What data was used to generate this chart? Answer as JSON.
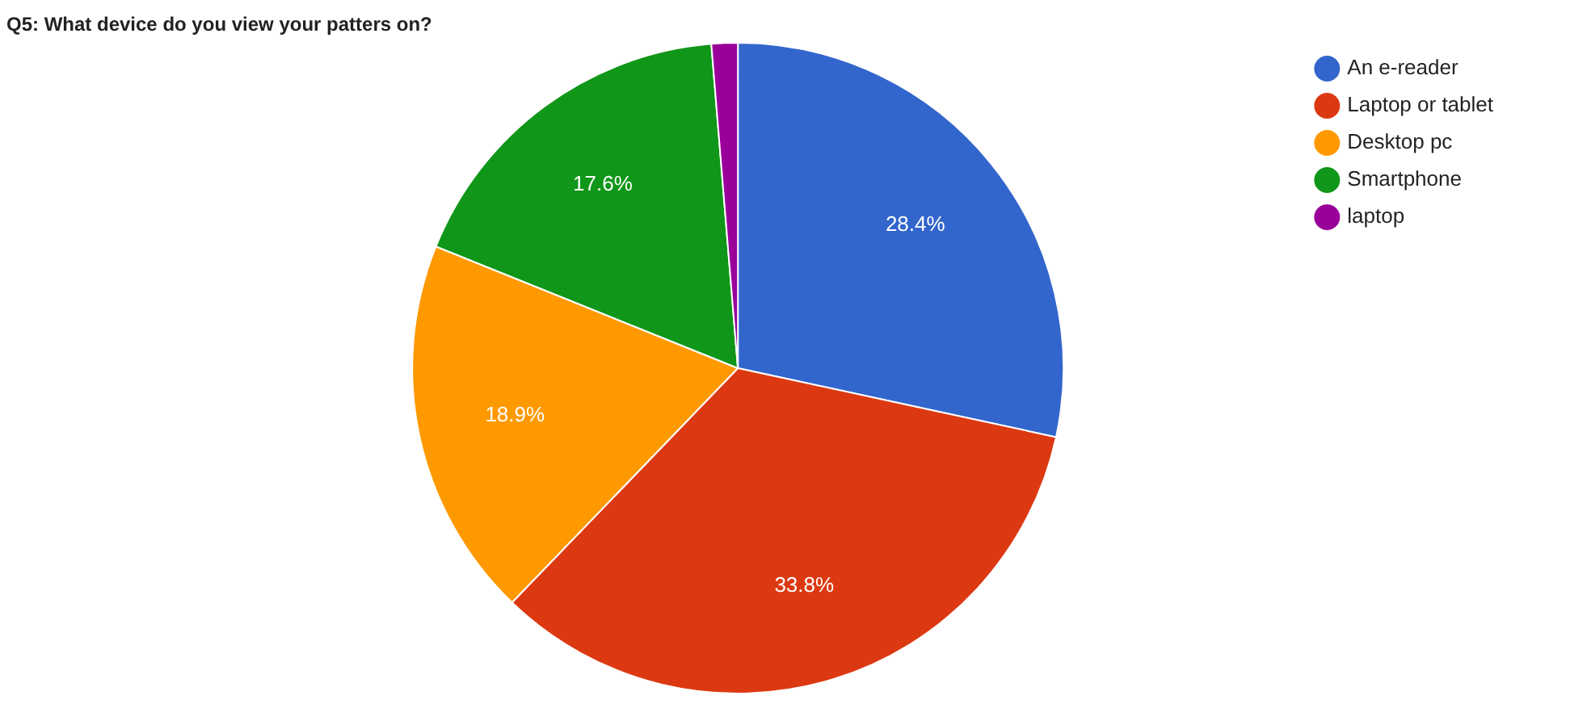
{
  "chart_data": {
    "type": "pie",
    "title": "Q5: What device do you view your patters on?",
    "categories": [
      "An e-reader",
      "Laptop or tablet",
      "Desktop pc",
      "Smartphone",
      "laptop"
    ],
    "values": [
      28.4,
      33.8,
      18.9,
      17.6,
      1.3
    ],
    "colors": [
      "#3366cc",
      "#dc3912",
      "#ff9900",
      "#109618",
      "#990099"
    ],
    "value_labels": [
      "28.4%",
      "33.8%",
      "18.9%",
      "17.6%",
      null
    ],
    "legend": "right"
  }
}
